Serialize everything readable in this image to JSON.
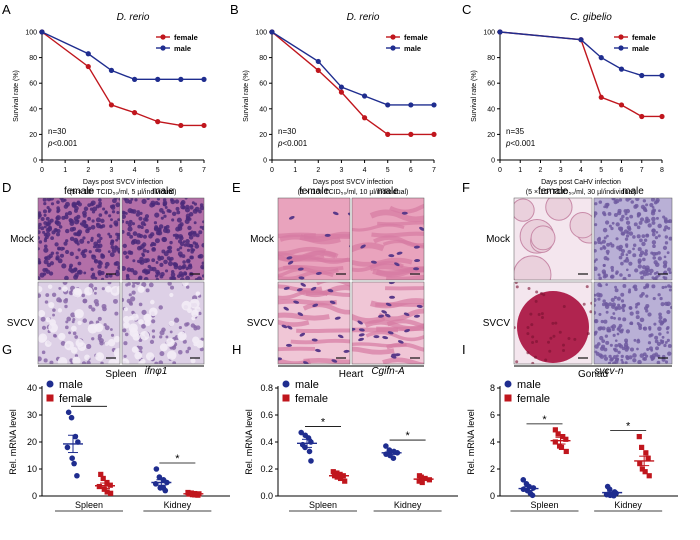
{
  "colors": {
    "female": "#c0161d",
    "male": "#1f2d8f",
    "axis": "#000000",
    "he_bg_pink": "#e9b0c4",
    "he_nuclei": "#4b2a7a",
    "gonad_purple": "#6e5aa0"
  },
  "chart_data": [
    {
      "panel": "A",
      "type": "line",
      "title": "D. rerio",
      "xlabel": "Days post SVCV infection",
      "xlabel2": "(5 × 10⁶ TCID₅₀/ml, 5 µl/individual)",
      "ylabel": "Survival rate (%)",
      "xlim": [
        0,
        7
      ],
      "ylim": [
        0,
        100
      ],
      "xticks": [
        "0",
        "1",
        "2",
        "3",
        "4",
        "5",
        "6",
        "7"
      ],
      "yticks": [
        "0",
        "20",
        "40",
        "60",
        "80",
        "100"
      ],
      "x": [
        0,
        2,
        3,
        4,
        5,
        6,
        7
      ],
      "series": [
        {
          "name": "female",
          "values": [
            100,
            73,
            43,
            37,
            30,
            27,
            27
          ]
        },
        {
          "name": "male",
          "values": [
            100,
            83,
            70,
            63,
            63,
            63,
            63
          ]
        }
      ],
      "legend": "top-right",
      "annotations": [
        "n=30",
        "p<0.001"
      ]
    },
    {
      "panel": "B",
      "type": "line",
      "title": "D. rerio",
      "xlabel": "Days post SVCV infection",
      "xlabel2": "(5 × 10⁶ TCID₅₀/ml, 10 µl/individual)",
      "ylabel": "Survival rate (%)",
      "xlim": [
        0,
        7
      ],
      "ylim": [
        0,
        100
      ],
      "xticks": [
        "0",
        "1",
        "2",
        "3",
        "4",
        "5",
        "6",
        "7"
      ],
      "yticks": [
        "0",
        "20",
        "40",
        "60",
        "80",
        "100"
      ],
      "x": [
        0,
        2,
        3,
        4,
        5,
        6,
        7
      ],
      "series": [
        {
          "name": "female",
          "values": [
            100,
            70,
            53,
            33,
            20,
            20,
            20
          ]
        },
        {
          "name": "male",
          "values": [
            100,
            77,
            57,
            50,
            43,
            43,
            43
          ]
        }
      ],
      "legend": "top-right",
      "annotations": [
        "n=30",
        "p<0.001"
      ]
    },
    {
      "panel": "C",
      "type": "line",
      "title": "C. gibelio",
      "xlabel": "Days post CaHV infection",
      "xlabel2": "(5 × 10⁷ TCID₅₀/ml, 30 µl/individual)",
      "ylabel": "Survival rate (%)",
      "xlim": [
        0,
        8
      ],
      "ylim": [
        0,
        100
      ],
      "xticks": [
        "0",
        "1",
        "2",
        "3",
        "4",
        "5",
        "6",
        "7",
        "8"
      ],
      "yticks": [
        "0",
        "20",
        "40",
        "60",
        "80",
        "100"
      ],
      "x": [
        0,
        4,
        5,
        6,
        7,
        8
      ],
      "series": [
        {
          "name": "female",
          "values": [
            100,
            94,
            49,
            43,
            34,
            34
          ]
        },
        {
          "name": "male",
          "values": [
            100,
            94,
            80,
            71,
            66,
            66
          ]
        }
      ],
      "legend": "top-right",
      "annotations": [
        "n=35",
        "p<0.001"
      ]
    },
    {
      "panel": "G",
      "type": "scatter",
      "title": "ifnφ1",
      "ylabel": "Rel. mRNA level",
      "ylim": [
        0,
        40
      ],
      "yticks": [
        "0",
        "10",
        "20",
        "30",
        "40"
      ],
      "categories": [
        "Spleen",
        "Kidney"
      ],
      "series": [
        {
          "name": "male",
          "values": [
            [
              31,
              29,
              22,
              20,
              18,
              14,
              12,
              7.5
            ],
            [
              10,
              7,
              6,
              5,
              4.5,
              3,
              3,
              2
            ]
          ],
          "means": [
            19.3,
            5.0
          ],
          "sems": [
            3.2,
            1.0
          ]
        },
        {
          "name": "female",
          "values": [
            [
              8,
              6.5,
              5,
              4,
              3.5,
              2.5,
              1.5,
              1
            ],
            [
              1.3,
              1.1,
              0.9,
              0.8,
              0.7,
              0.5,
              0.4,
              0.3
            ]
          ],
          "means": [
            3.8,
            0.8
          ],
          "sems": [
            1.0,
            0.15
          ]
        }
      ],
      "significance": [
        "*",
        "*"
      ],
      "legend": "top-left"
    },
    {
      "panel": "H",
      "type": "scatter",
      "title": "Cgifn-A",
      "ylabel": "Rel. mRNA level",
      "ylim": [
        0,
        0.8
      ],
      "yticks": [
        "0.0",
        "0.2",
        "0.4",
        "0.6",
        "0.8"
      ],
      "categories": [
        "Spleen",
        "Kidney"
      ],
      "series": [
        {
          "name": "male",
          "values": [
            [
              0.47,
              0.45,
              0.43,
              0.4,
              0.38,
              0.36,
              0.33,
              0.26
            ],
            [
              0.37,
              0.34,
              0.33,
              0.32,
              0.31,
              0.3,
              0.28
            ]
          ],
          "means": [
            0.39,
            0.32
          ],
          "sems": [
            0.03,
            0.012
          ]
        },
        {
          "name": "female",
          "values": [
            [
              0.18,
              0.17,
              0.16,
              0.15,
              0.15,
              0.14,
              0.13,
              0.11
            ],
            [
              0.15,
              0.14,
              0.13,
              0.12,
              0.11,
              0.1
            ]
          ],
          "means": [
            0.15,
            0.125
          ],
          "sems": [
            0.01,
            0.008
          ]
        }
      ],
      "significance": [
        "*",
        "*"
      ],
      "legend": "top-left"
    },
    {
      "panel": "I",
      "type": "scatter",
      "title": "svcv-n",
      "ylabel": "Rel. mRNA level",
      "ylim": [
        0,
        8
      ],
      "yticks": [
        "0",
        "2",
        "4",
        "6",
        "8"
      ],
      "categories": [
        "Spleen",
        "Kidney"
      ],
      "series": [
        {
          "name": "male",
          "values": [
            [
              1.2,
              0.9,
              0.7,
              0.6,
              0.5,
              0.4,
              0.2,
              0.05
            ],
            [
              0.7,
              0.5,
              0.3,
              0.2,
              0.1,
              0.05,
              0.02
            ]
          ],
          "means": [
            0.55,
            0.25
          ],
          "sems": [
            0.14,
            0.1
          ]
        },
        {
          "name": "female",
          "values": [
            [
              4.9,
              4.6,
              4.4,
              4.2,
              4.0,
              3.7,
              3.6,
              3.3
            ],
            [
              4.4,
              3.6,
              3.2,
              2.8,
              2.4,
              2.0,
              1.8,
              1.5
            ]
          ],
          "means": [
            4.1,
            2.6
          ],
          "sems": [
            0.25,
            0.35
          ]
        }
      ],
      "significance": [
        "*",
        "*"
      ],
      "legend": "top-left"
    }
  ],
  "histology": [
    {
      "panel": "D",
      "cols": [
        "female",
        "male"
      ],
      "rows": [
        "Mock",
        "SVCV"
      ],
      "caption": "Spleen",
      "type": "spleen"
    },
    {
      "panel": "E",
      "cols": [
        "female",
        "male"
      ],
      "rows": [
        "Mock",
        "SVCV"
      ],
      "caption": "Heart",
      "type": "heart"
    },
    {
      "panel": "F",
      "cols": [
        "female",
        "male"
      ],
      "rows": [
        "Mock",
        "SVCV"
      ],
      "caption": "Gonad",
      "type": "gonad"
    }
  ]
}
